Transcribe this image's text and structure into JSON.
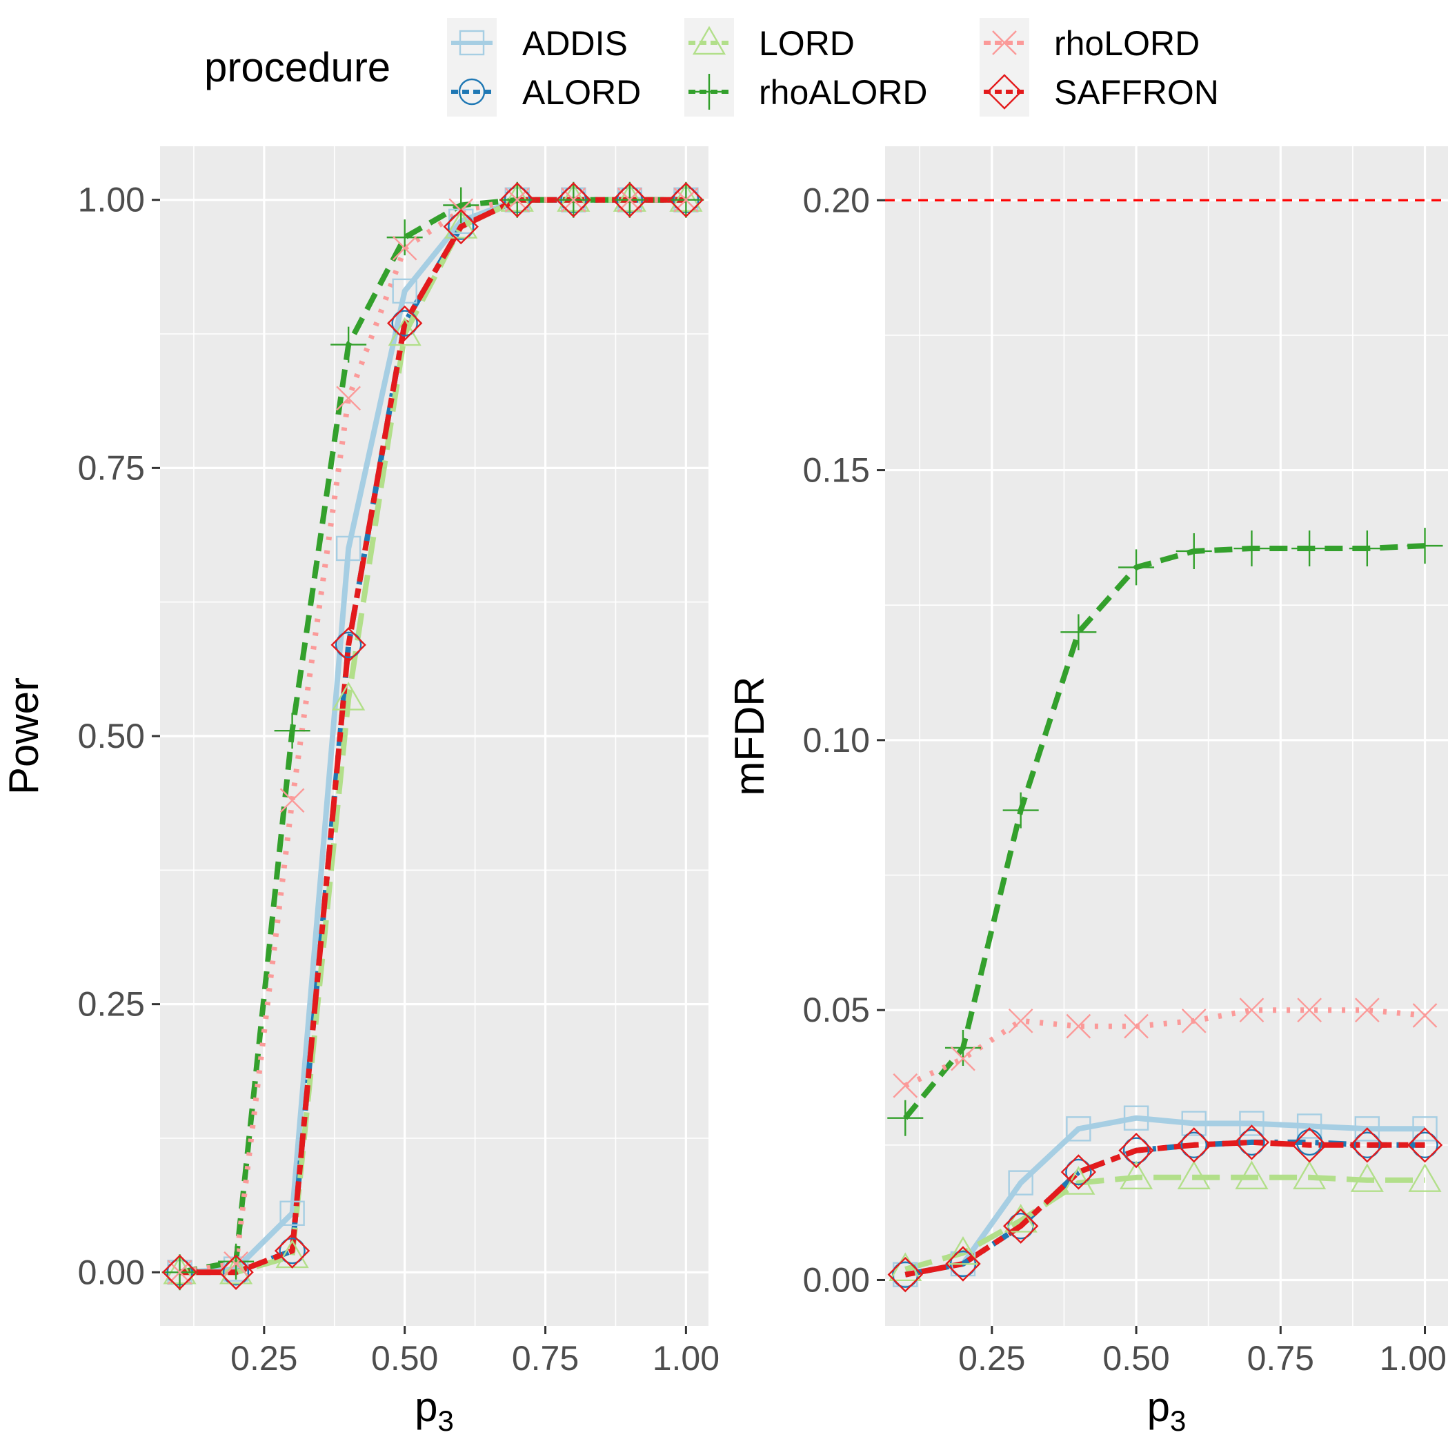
{
  "legend": {
    "title": "procedure",
    "position": "top",
    "entries": [
      "ADDIS",
      "ALORD",
      "LORD",
      "rhoALORD",
      "rhoLORD",
      "SAFFRON"
    ]
  },
  "styles": {
    "ADDIS": {
      "color": "#a6cee3",
      "dash": "solid",
      "marker": "square"
    },
    "ALORD": {
      "color": "#1f78b4",
      "dash": "dashdot",
      "marker": "circle"
    },
    "LORD": {
      "color": "#b2df8a",
      "dash": "longdash",
      "marker": "triangle"
    },
    "rhoALORD": {
      "color": "#33a02c",
      "dash": "dashed",
      "marker": "plus"
    },
    "rhoLORD": {
      "color": "#fb9a99",
      "dash": "dotted",
      "marker": "cross"
    },
    "SAFFRON": {
      "color": "#e31a1c",
      "dash": "twodash",
      "marker": "diamond"
    }
  },
  "chart_data": [
    {
      "type": "line",
      "xlabel": "p",
      "xlabel_sub": "3",
      "ylabel": "Power",
      "xlim": [
        0.065,
        1.04
      ],
      "ylim": [
        -0.05,
        1.05
      ],
      "xticks": [
        0.25,
        0.5,
        0.75,
        1.0
      ],
      "xtick_labels": [
        "0.25",
        "0.50",
        "0.75",
        "1.00"
      ],
      "yticks": [
        0.0,
        0.25,
        0.5,
        0.75,
        1.0
      ],
      "ytick_labels": [
        "0.00",
        "0.25",
        "0.50",
        "0.75",
        "1.00"
      ],
      "grid": true,
      "x": [
        0.1,
        0.2,
        0.3,
        0.4,
        0.5,
        0.6,
        0.7,
        0.8,
        0.9,
        1.0
      ],
      "series": [
        {
          "name": "ADDIS",
          "values": [
            0.0,
            0.003,
            0.055,
            0.675,
            0.915,
            0.98,
            1.0,
            1.0,
            1.0,
            1.0
          ]
        },
        {
          "name": "ALORD",
          "values": [
            0.0,
            0.0,
            0.02,
            0.585,
            0.885,
            0.975,
            1.0,
            1.0,
            1.0,
            1.0
          ]
        },
        {
          "name": "LORD",
          "values": [
            0.0,
            0.0,
            0.015,
            0.535,
            0.875,
            0.975,
            1.0,
            1.0,
            1.0,
            1.0
          ]
        },
        {
          "name": "rhoALORD",
          "values": [
            0.0,
            0.01,
            0.505,
            0.865,
            0.965,
            0.995,
            1.0,
            1.0,
            1.0,
            1.0
          ]
        },
        {
          "name": "rhoLORD",
          "values": [
            0.0,
            0.008,
            0.44,
            0.815,
            0.955,
            0.99,
            1.0,
            1.0,
            1.0,
            1.0
          ]
        },
        {
          "name": "SAFFRON",
          "values": [
            0.0,
            0.0,
            0.02,
            0.585,
            0.885,
            0.975,
            1.0,
            1.0,
            1.0,
            1.0
          ]
        }
      ],
      "hline": null
    },
    {
      "type": "line",
      "xlabel": "p",
      "xlabel_sub": "3",
      "ylabel": "mFDR",
      "xlim": [
        0.065,
        1.04
      ],
      "ylim": [
        -0.0085,
        0.21
      ],
      "xticks": [
        0.25,
        0.5,
        0.75,
        1.0
      ],
      "xtick_labels": [
        "0.25",
        "0.50",
        "0.75",
        "1.00"
      ],
      "yticks": [
        0.0,
        0.05,
        0.1,
        0.15,
        0.2
      ],
      "ytick_labels": [
        "0.00",
        "0.05",
        "0.10",
        "0.15",
        "0.20"
      ],
      "grid": true,
      "x": [
        0.1,
        0.2,
        0.3,
        0.4,
        0.5,
        0.6,
        0.7,
        0.8,
        0.9,
        1.0
      ],
      "series": [
        {
          "name": "ADDIS",
          "values": [
            0.001,
            0.003,
            0.018,
            0.028,
            0.03,
            0.029,
            0.029,
            0.0285,
            0.028,
            0.028
          ]
        },
        {
          "name": "ALORD",
          "values": [
            0.001,
            0.003,
            0.01,
            0.02,
            0.024,
            0.025,
            0.0255,
            0.0255,
            0.025,
            0.025
          ]
        },
        {
          "name": "LORD",
          "values": [
            0.002,
            0.005,
            0.011,
            0.018,
            0.019,
            0.019,
            0.019,
            0.019,
            0.0185,
            0.0185
          ]
        },
        {
          "name": "rhoALORD",
          "values": [
            0.03,
            0.043,
            0.087,
            0.12,
            0.132,
            0.135,
            0.1355,
            0.1355,
            0.1355,
            0.136
          ]
        },
        {
          "name": "rhoLORD",
          "values": [
            0.036,
            0.041,
            0.048,
            0.047,
            0.047,
            0.048,
            0.05,
            0.05,
            0.05,
            0.049
          ]
        },
        {
          "name": "SAFFRON",
          "values": [
            0.001,
            0.003,
            0.01,
            0.02,
            0.024,
            0.025,
            0.0255,
            0.025,
            0.025,
            0.025
          ]
        }
      ],
      "hline": {
        "y": 0.2,
        "color": "#ff0000",
        "dash": "dashed"
      }
    }
  ]
}
